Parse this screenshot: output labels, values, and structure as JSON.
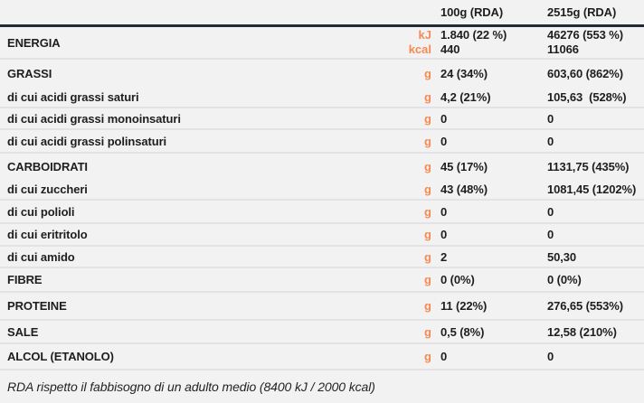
{
  "table": {
    "header": {
      "col1": "100g (RDA)",
      "col2": "2515g (RDA)"
    },
    "energy": {
      "label": "ENERGIA",
      "unit_line1": "kJ",
      "unit_line2": "kcal",
      "val1_line1": "1.840 (22 %)",
      "val1_line2": "440",
      "val2_line1": "46276 (553 %)",
      "val2_line2": "11066"
    },
    "rows": [
      {
        "label": "GRASSI",
        "unit": "g",
        "val1": "24 (34%)",
        "val2": "603,60 (862%)"
      },
      {
        "label": "di cui acidi grassi saturi",
        "unit": "g",
        "val1": "4,2 (21%)",
        "val2": "105,63  (528%)"
      },
      {
        "label": "di cui acidi grassi monoinsaturi",
        "unit": "g",
        "val1": "0",
        "val2": "0"
      },
      {
        "label": "di cui acidi grassi polinsaturi",
        "unit": "g",
        "val1": "0",
        "val2": "0"
      },
      {
        "label": "CARBOIDRATI",
        "unit": "g",
        "val1": "45 (17%)",
        "val2": "1131,75 (435%)"
      },
      {
        "label": "di cui zuccheri",
        "unit": "g",
        "val1": "43 (48%)",
        "val2": "1081,45 (1202%)"
      },
      {
        "label": "di cui polioli",
        "unit": "g",
        "val1": "0",
        "val2": "0"
      },
      {
        "label": "di cui eritritolo",
        "unit": "g",
        "val1": "0",
        "val2": "0"
      },
      {
        "label": "di cui amido",
        "unit": "g",
        "val1": "2",
        "val2": "50,30"
      },
      {
        "label": "FIBRE",
        "unit": "g",
        "val1": "0 (0%)",
        "val2": "0 (0%)"
      },
      {
        "label": "PROTEINE",
        "unit": "g",
        "val1": "11 (22%)",
        "val2": "276,65 (553%)"
      },
      {
        "label": "SALE",
        "unit": "g",
        "val1": "0,5 (8%)",
        "val2": "12,58 (210%)"
      },
      {
        "label": "ALCOL (ETANOLO)",
        "unit": "g",
        "val1": "0",
        "val2": "0"
      }
    ],
    "footer": "RDA rispetto il fabbisogno di un adulto medio (8400 kJ / 2000 kcal)"
  },
  "colors": {
    "background": "#f2f2f3",
    "text": "#1e1e1e",
    "unit_orange": "#f58a52",
    "header_rule": "#202b38",
    "row_rule": "#e2e2e7"
  }
}
